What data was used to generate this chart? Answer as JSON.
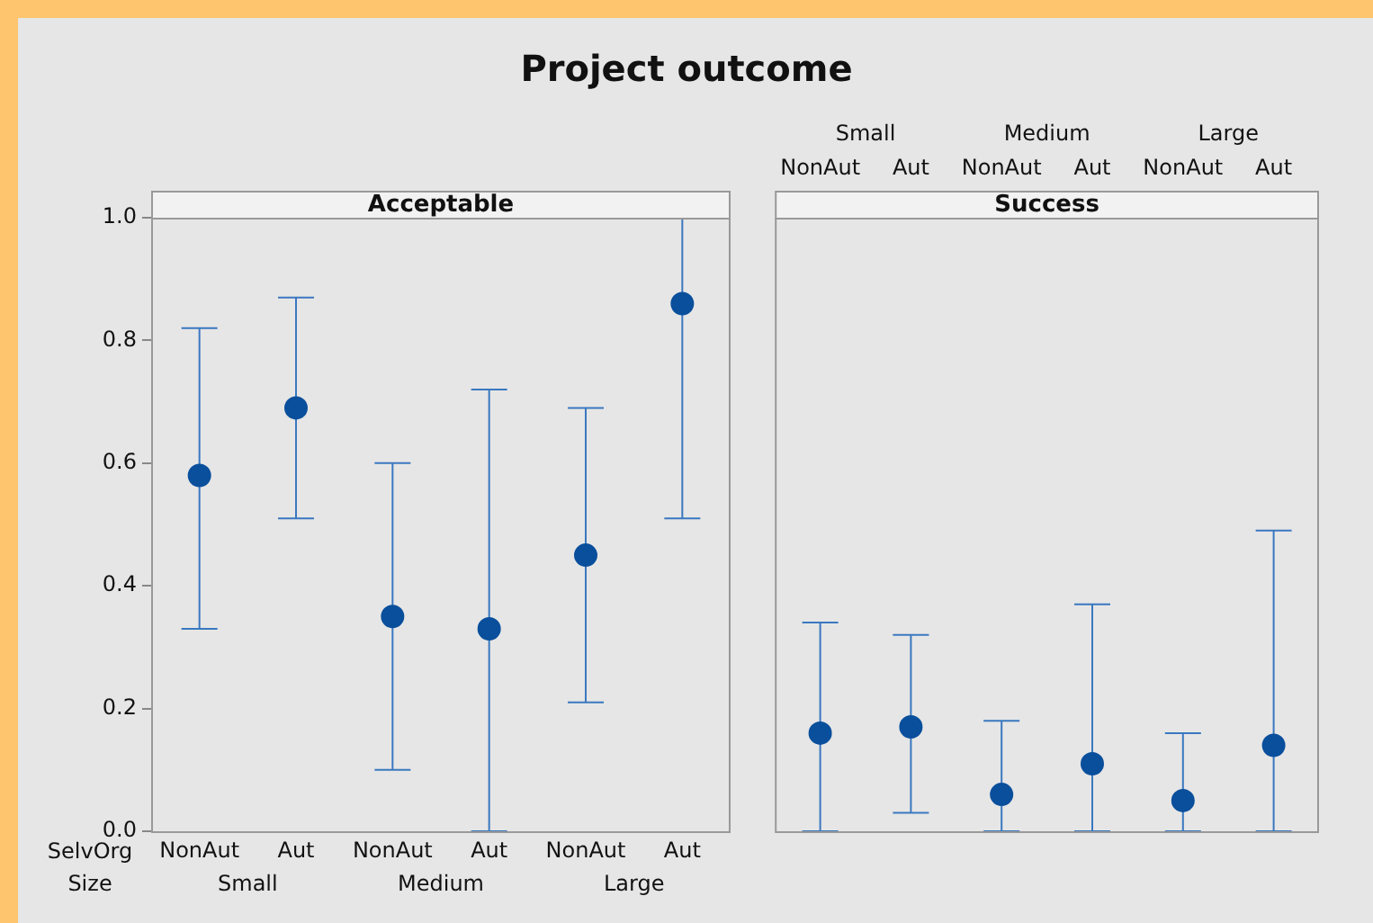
{
  "chart_data": [
    {
      "type": "scatter",
      "title": "Project outcome",
      "subtitle": "Acceptable",
      "categories": [
        "NonAut",
        "Aut",
        "NonAut",
        "Aut",
        "NonAut",
        "Aut"
      ],
      "series": [
        {
          "color": "#0a4f9c",
          "values": [
            0.58,
            0.69,
            0.35,
            0.33,
            0.45,
            0.86
          ],
          "errors": [
            [
              0.33,
              0.82
            ],
            [
              0.51,
              0.87
            ],
            [
              0.1,
              0.6
            ],
            [
              0,
              0.72
            ],
            [
              0.21,
              0.69
            ],
            [
              0.51,
              1.0
            ]
          ]
        }
      ],
      "ylim": [
        0,
        1
      ],
      "yticks": [
        {
          "value": 0,
          "label": "0.0"
        },
        0.2,
        0.4,
        0.6,
        0.8,
        {
          "value": 1,
          "label": "1.0"
        }
      ],
      "annotations": [
        "SelvOrg",
        "Size",
        "Small",
        "Medium",
        "Large"
      ],
      "marker": "circle",
      "grid": false,
      "legend": false
    },
    {
      "type": "scatter",
      "subtitle": "Success",
      "categories": [
        "NonAut",
        "Aut",
        "NonAut",
        "Aut",
        "NonAut",
        "Aut"
      ],
      "series": [
        {
          "color": "#0a4f9c",
          "values": [
            0.16,
            0.17,
            0.06,
            0.11,
            0.05,
            0.14
          ],
          "errors": [
            [
              0,
              0.34
            ],
            [
              0.03,
              0.32
            ],
            [
              0,
              0.18
            ],
            [
              0,
              0.37
            ],
            [
              0,
              0.16
            ],
            [
              0,
              0.49
            ]
          ]
        }
      ],
      "ylim": [
        0,
        1
      ],
      "tick_labels": "x",
      "annotations": [
        "Small",
        "Medium",
        "Large"
      ],
      "marker": "circle",
      "grid": false,
      "legend": false
    }
  ]
}
